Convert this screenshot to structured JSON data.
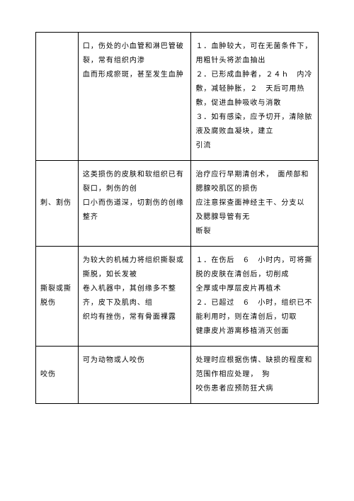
{
  "rows": [
    {
      "c1": "",
      "c2": "口，伤处的小血管和淋巴管破裂，常有组织内渗\n血而形成瘀斑，甚至发生血肿",
      "c3": "１．血肿较大，可在无菌条件下，用粗针头将淤血抽出\n２．已形成血肿者，２４ｈ　内冷敷，减轻肿胀，２　天后可用热\n敷，促进血肿吸收与消散\n３．如有感染，应予切开，清除脓液及腐败血凝块，建立\n引流"
    },
    {
      "c1": "刺、割伤",
      "c2": "这类损伤的皮肤和软组织已有裂口，刺伤的创\n口小而伤道深，切割伤的创缘整齐",
      "c3": "治疗应行早期清创术，　面颅部和腮腺咬肌区的损伤\n应注意探查面神经主干、分支以\n及腮腺导管有无\n断裂"
    },
    {
      "c1": "撕裂或撕脱伤",
      "c2": "为较大的机械力将组织撕裂或撕脱，如长发被\n卷入机器中，其创缘多不整齐，皮下及肌肉、组\n织均有挫伤，常有骨面裸露",
      "c3": "１．在伤后　６　小时内，可将撕脱的皮肤在清创后，切削成\n全厚或中厚层皮片再植术\n２．已超过　６　小时，组织已不能利用时，则在清创后，切取\n健康皮片游离移植消灭创面"
    },
    {
      "c1": "咬伤",
      "c2": "可为动物或人咬伤",
      "c3": "处理时应根据伤情、缺损的程度和范围作相应处理，　狗\n咬伤患者应预防狂犬病"
    }
  ]
}
